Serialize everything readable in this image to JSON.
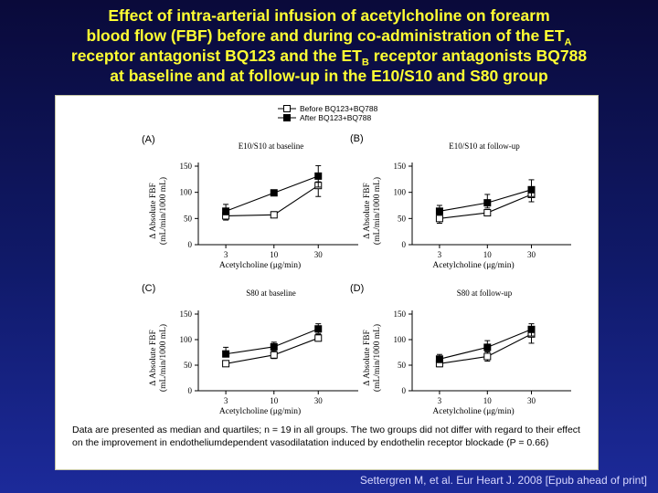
{
  "slide": {
    "title_line1": "Effect of intra-arterial infusion of acetylcholine on forearm",
    "title_line2_pre": "blood flow (FBF) before and during co-administration of the ET",
    "title_line2_sub": "A",
    "title_line3_pre": "receptor antagonist BQ123 and the ET",
    "title_line3_sub": "B",
    "title_line3_post": " receptor antagonists BQ788",
    "title_line4": "at baseline and at follow-up in the E10/S10 and S80 group",
    "caption": "Data are presented as median and quartiles; n = 19 in all groups. The two groups did not differ with regard to their effect on the improvement in endotheliumdependent vasodilatation induced by endothelin receptor blockade (P = 0.66)",
    "citation": "Settergren M, et al. Eur Heart J. 2008 [Epub ahead of print]"
  },
  "colors": {
    "title": "#ffff33",
    "background": "#101a6a",
    "panel": "#ffffff",
    "citation": "#d8d8ff"
  },
  "chart_data": [
    {
      "type": "line",
      "panel": "(A)",
      "title": "E10/S10 at baseline",
      "xlabel": "Acetylcholine (μg/min)",
      "ylabel_line1": "Δ Absolute FBF",
      "ylabel_line2": "(mL/min/1000 mL)",
      "categories": [
        "3",
        "10",
        "30"
      ],
      "yticks": [
        0,
        50,
        100,
        150
      ],
      "ylim": [
        0,
        150
      ],
      "series": [
        {
          "name": "Before BQ123+BQ788",
          "marker": "open-square",
          "values": [
            55,
            57,
            113
          ],
          "err_low": [
            47,
            52,
            92
          ],
          "err_high": [
            63,
            63,
            120
          ]
        },
        {
          "name": "After BQ123+BQ788",
          "marker": "filled-square",
          "values": [
            64,
            99,
            131
          ],
          "err_low": [
            57,
            96,
            110
          ],
          "err_high": [
            77,
            103,
            151
          ]
        }
      ]
    },
    {
      "type": "line",
      "panel": "(B)",
      "title": "E10/S10 at follow-up",
      "xlabel": "Acetylcholine (μg/min)",
      "ylabel_line1": "Δ Absolute FBF",
      "ylabel_line2": "(mL/min/1000 mL)",
      "categories": [
        "3",
        "10",
        "30"
      ],
      "yticks": [
        0,
        50,
        100,
        150
      ],
      "ylim": [
        0,
        150
      ],
      "series": [
        {
          "name": "Before BQ123+BQ788",
          "marker": "open-square",
          "values": [
            50,
            61,
            96
          ],
          "err_low": [
            41,
            55,
            82
          ],
          "err_high": [
            58,
            66,
            110
          ]
        },
        {
          "name": "After BQ123+BQ788",
          "marker": "filled-square",
          "values": [
            64,
            80,
            105
          ],
          "err_low": [
            57,
            70,
            92
          ],
          "err_high": [
            75,
            96,
            124
          ]
        }
      ]
    },
    {
      "type": "line",
      "panel": "(C)",
      "title": "S80 at baseline",
      "xlabel": "Acetylcholine (μg/min)",
      "ylabel_line1": "Δ Absolute FBF",
      "ylabel_line2": "(mL/min/1000 mL)",
      "categories": [
        "3",
        "10",
        "30"
      ],
      "yticks": [
        0,
        50,
        100,
        150
      ],
      "ylim": [
        0,
        150
      ],
      "series": [
        {
          "name": "Before BQ123+BQ788",
          "marker": "open-square",
          "values": [
            53,
            70,
            103
          ],
          "err_low": [
            48,
            63,
            97
          ],
          "err_high": [
            58,
            78,
            110
          ]
        },
        {
          "name": "After BQ123+BQ788",
          "marker": "filled-square",
          "values": [
            72,
            86,
            121
          ],
          "err_low": [
            66,
            80,
            112
          ],
          "err_high": [
            85,
            95,
            131
          ]
        }
      ]
    },
    {
      "type": "line",
      "panel": "(D)",
      "title": "S80 at follow-up",
      "xlabel": "Acetylcholine (μg/min)",
      "ylabel_line1": "Δ Absolute FBF",
      "ylabel_line2": "(mL/min/1000 mL)",
      "categories": [
        "3",
        "10",
        "30"
      ],
      "yticks": [
        0,
        50,
        100,
        150
      ],
      "ylim": [
        0,
        150
      ],
      "series": [
        {
          "name": "Before BQ123+BQ788",
          "marker": "open-square",
          "values": [
            53,
            67,
            111
          ],
          "err_low": [
            47,
            58,
            93
          ],
          "err_high": [
            61,
            76,
            122
          ]
        },
        {
          "name": "After BQ123+BQ788",
          "marker": "filled-square",
          "values": [
            62,
            85,
            120
          ],
          "err_low": [
            55,
            78,
            107
          ],
          "err_high": [
            71,
            98,
            131
          ]
        }
      ]
    }
  ],
  "legend": [
    {
      "label": "Before BQ123+BQ788",
      "marker": "open-square"
    },
    {
      "label": "After BQ123+BQ788",
      "marker": "filled-square"
    }
  ]
}
